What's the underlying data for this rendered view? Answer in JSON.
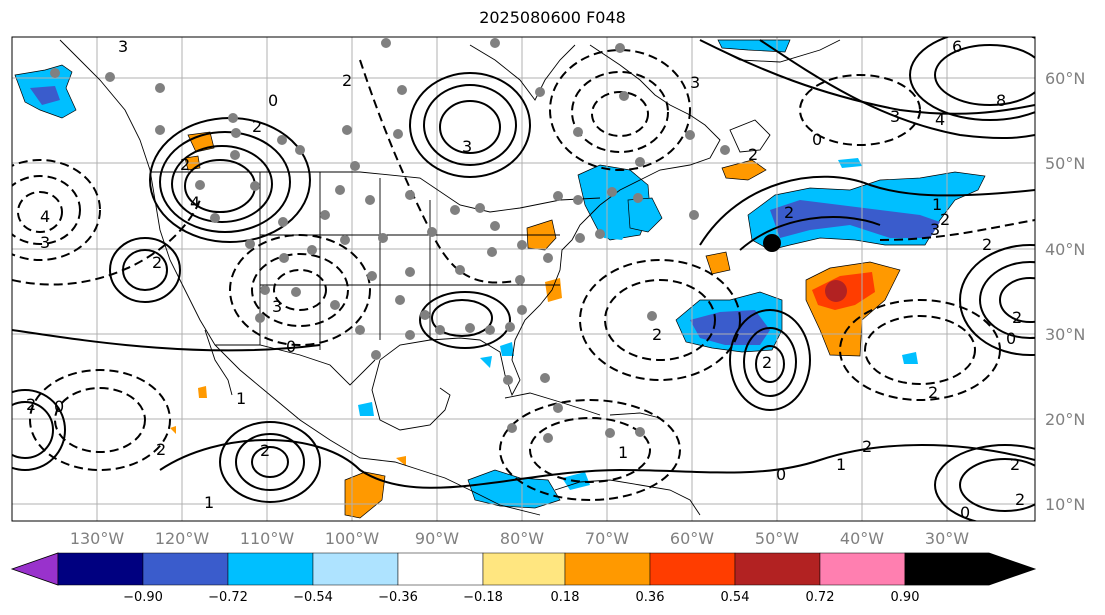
{
  "title": "2025080600 F048",
  "map": {
    "lat_labels": [
      "60°N",
      "50°N",
      "40°N",
      "30°N",
      "20°N",
      "10°N"
    ],
    "lon_labels": [
      "130°W",
      "120°W",
      "110°W",
      "100°W",
      "90°W",
      "80°W",
      "70°W",
      "60°W",
      "50°W",
      "40°W",
      "30°W"
    ],
    "contour_labels": [
      "3",
      "2",
      "0",
      "2",
      "3",
      "6",
      "8",
      "3",
      "4",
      "2",
      "4",
      "2",
      "3",
      "4",
      "3",
      "0",
      "2",
      "3",
      "2",
      "1",
      "2",
      "0",
      "2",
      "0",
      "2",
      "1",
      "3",
      "2",
      "2",
      "0",
      "1",
      "2",
      "0",
      "2",
      "2",
      "2",
      "2",
      "2",
      "2",
      "1",
      "0",
      "1"
    ],
    "colors": {
      "purple": "#9932cc",
      "navy": "#000080",
      "royalblue": "#3a5ccc",
      "deepskyblue": "#00bfff",
      "lightblue": "#aee3ff",
      "white": "#ffffff",
      "khaki": "#ffe680",
      "orange": "#ff9900",
      "orangered": "#ff3d00",
      "firebrick": "#b22222",
      "pink": "#ff7fb0"
    }
  },
  "colorbar": {
    "tick_labels": [
      "−0.90",
      "−0.72",
      "−0.54",
      "−0.36",
      "−0.18",
      "0.18",
      "0.36",
      "0.54",
      "0.72",
      "0.90"
    ],
    "colors": [
      "#9932cc",
      "#000080",
      "#3a5ccc",
      "#00bfff",
      "#aee3ff",
      "#ffffff",
      "#ffe680",
      "#ff9900",
      "#ff3d00",
      "#b22222",
      "#ff7fb0"
    ]
  }
}
